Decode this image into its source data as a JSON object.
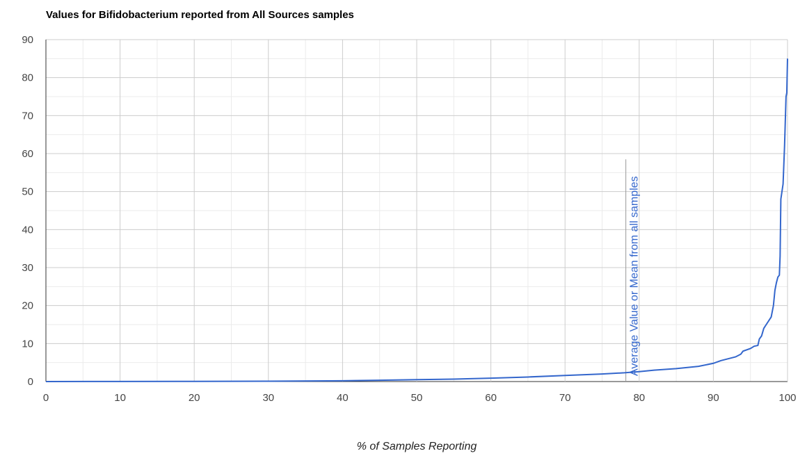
{
  "chart_data": {
    "type": "line",
    "title": "Values for Bifidobacterium reported from All Sources samples",
    "x_label": "% of Samples Reporting",
    "xlim": [
      0,
      100
    ],
    "xticks": [
      0,
      10,
      20,
      30,
      40,
      50,
      60,
      70,
      80,
      90,
      100
    ],
    "ylim": [
      0,
      90
    ],
    "yticks": [
      0,
      10,
      20,
      30,
      40,
      50,
      60,
      70,
      80,
      90
    ],
    "grid": true,
    "x": [
      0,
      10,
      20,
      30,
      40,
      45,
      50,
      55,
      60,
      65,
      70,
      75,
      78,
      80,
      82,
      85,
      88,
      90,
      91,
      92,
      93,
      93.7,
      94,
      95,
      95.5,
      96,
      96.2,
      96.5,
      96.8,
      97.3,
      97.8,
      98.1,
      98.3,
      98.5,
      98.7,
      98.9,
      99,
      99.1,
      99.4,
      99.6,
      99.8,
      99.9,
      100
    ],
    "series": [
      {
        "name": "Bifidobacterium",
        "color": "#3366cc",
        "values": [
          0,
          0.02,
          0.05,
          0.1,
          0.2,
          0.35,
          0.5,
          0.65,
          0.9,
          1.2,
          1.6,
          2.0,
          2.3,
          2.6,
          3.0,
          3.4,
          4.0,
          4.8,
          5.5,
          6.0,
          6.5,
          7.2,
          8.0,
          8.7,
          9.3,
          9.5,
          11.2,
          12,
          14,
          15.5,
          17,
          20,
          24,
          26,
          27.5,
          28,
          33,
          48,
          52,
          62,
          75,
          76,
          85
        ]
      }
    ],
    "annotation": {
      "x": 78.2,
      "text": "Average Value or Mean from all samples",
      "color": "#3366cc"
    }
  }
}
